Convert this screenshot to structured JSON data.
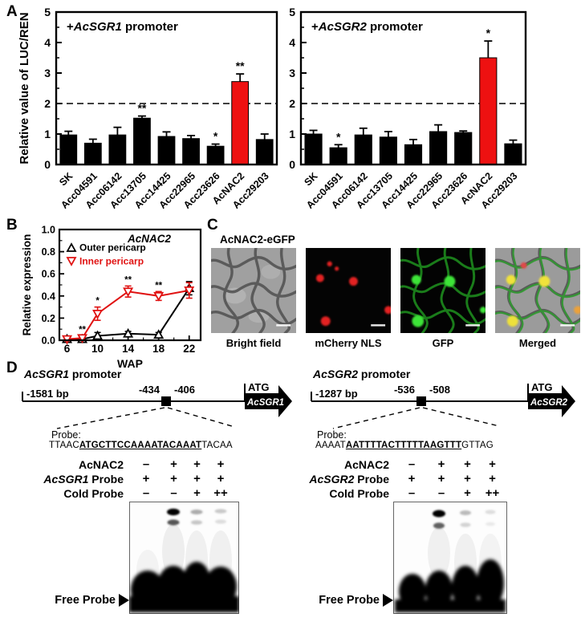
{
  "figure": {
    "background": "#ffffff"
  },
  "colors": {
    "highlight_red": "#ee1111",
    "series_red": "#e01212",
    "bar_black": "#000000"
  },
  "panels": {
    "A": {
      "label": "A"
    },
    "B": {
      "label": "B"
    },
    "C": {
      "label": "C",
      "title": "AcNAC2-eGFP",
      "captions": [
        "Bright field",
        "mCherry NLS",
        "GFP",
        "Merged"
      ]
    },
    "D": {
      "label": "D",
      "sections": [
        {
          "gene": "AcSGR1",
          "title_suffix": " promoter",
          "length_label": "-1581 bp",
          "site_left": "-434",
          "site_right": "-406",
          "atg_label": "ATG",
          "probe_label": "Probe:",
          "probe_prefix": "TTAAC",
          "probe_core": "ATGCTTCCAAAATACAAAT",
          "probe_suffix": "TACAA",
          "emsa_rows": [
            {
              "label_gene": "",
              "label": "AcNAC2",
              "symbols": [
                "–",
                "+",
                "+",
                "+"
              ]
            },
            {
              "label_gene": "AcSGR1",
              "label": " Probe",
              "symbols": [
                "+",
                "+",
                "+",
                "+"
              ]
            },
            {
              "label_gene": "",
              "label": "Cold Probe",
              "symbols": [
                "–",
                "–",
                "+",
                "++"
              ]
            }
          ],
          "free_probe_label": "Free Probe"
        },
        {
          "gene": "AcSGR2",
          "title_suffix": " promoter",
          "length_label": "-1287 bp",
          "site_left": "-536",
          "site_right": "-508",
          "atg_label": "ATG",
          "probe_label": "Probe:",
          "probe_prefix": "AAAAT",
          "probe_core": "AATTTTACTTTTTAAGTTT",
          "probe_suffix": "GTTAG",
          "emsa_rows": [
            {
              "label_gene": "",
              "label": "AcNAC2",
              "symbols": [
                "–",
                "+",
                "+",
                "+"
              ]
            },
            {
              "label_gene": "AcSGR2",
              "label": " Probe",
              "symbols": [
                "+",
                "+",
                "+",
                "+"
              ]
            },
            {
              "label_gene": "",
              "label": "Cold Probe",
              "symbols": [
                "–",
                "–",
                "+",
                "++"
              ]
            }
          ],
          "free_probe_label": "Free Probe"
        }
      ]
    }
  },
  "chart_data": [
    {
      "id": "luc_ren_acsgr1",
      "panel": "A",
      "type": "bar",
      "title": {
        "prefix": "+",
        "gene": "AcSGR1",
        "suffix": " promoter"
      },
      "ylabel": "Relative value of LUC/REN",
      "ylim": [
        0,
        5
      ],
      "yticks": [
        0,
        1,
        2,
        3,
        4,
        5
      ],
      "ref_line": 2,
      "categories": [
        "SK",
        "Acc04591",
        "Acc06142",
        "Acc13705",
        "Acc14425",
        "Acc22965",
        "Acc23626",
        "AcNAC2",
        "Acc29203"
      ],
      "values": [
        0.97,
        0.7,
        0.97,
        1.52,
        0.92,
        0.85,
        0.6,
        2.72,
        0.82
      ],
      "errors": [
        0.12,
        0.13,
        0.25,
        0.07,
        0.15,
        0.1,
        0.07,
        0.25,
        0.18
      ],
      "sig": [
        "",
        "",
        "",
        "**",
        "",
        "",
        "*",
        "**",
        ""
      ],
      "highlight_index": 7
    },
    {
      "id": "luc_ren_acsgr2",
      "panel": "A",
      "type": "bar",
      "title": {
        "prefix": "+",
        "gene": "AcSGR2",
        "suffix": " promoter"
      },
      "ylabel": "",
      "ylim": [
        0,
        5
      ],
      "yticks": [
        0,
        1,
        2,
        3,
        4,
        5
      ],
      "ref_line": 2,
      "categories": [
        "SK",
        "Acc04591",
        "Acc06142",
        "Acc13705",
        "Acc14425",
        "Acc22965",
        "Acc23626",
        "AcNAC2",
        "Acc29203"
      ],
      "values": [
        1.0,
        0.55,
        0.97,
        0.9,
        0.65,
        1.08,
        1.05,
        3.5,
        0.68
      ],
      "errors": [
        0.12,
        0.1,
        0.22,
        0.18,
        0.17,
        0.22,
        0.05,
        0.55,
        0.12
      ],
      "sig": [
        "",
        "*",
        "",
        "",
        "",
        "",
        "",
        "*",
        ""
      ],
      "highlight_index": 7
    },
    {
      "id": "acnac2_expression",
      "panel": "B",
      "type": "line",
      "title": "AcNAC2",
      "xlabel": "WAP",
      "ylabel": "Relative expression",
      "xlim": [
        5,
        23.5
      ],
      "ylim": [
        0,
        1.0
      ],
      "xticks": [
        6,
        10,
        14,
        18,
        22
      ],
      "x_minor": [
        8,
        12,
        16,
        20
      ],
      "yticks": [
        0.0,
        0.2,
        0.4,
        0.6,
        0.8,
        1.0
      ],
      "x": [
        6,
        8,
        10,
        14,
        18,
        22
      ],
      "legend_position": "top-left",
      "series": [
        {
          "name": "Outer pericarp",
          "color": "#000000",
          "marker": "triangle-up",
          "values": [
            0.01,
            0.01,
            0.04,
            0.06,
            0.05,
            0.47
          ],
          "errors": [
            0.01,
            0.01,
            0.03,
            0.02,
            0.02,
            0.06
          ],
          "sig": [
            "",
            "",
            "",
            "",
            "",
            ""
          ]
        },
        {
          "name": "Inner pericarp",
          "color": "#e01212",
          "marker": "triangle-down",
          "values": [
            0.01,
            0.02,
            0.24,
            0.44,
            0.4,
            0.45
          ],
          "errors": [
            0.015,
            0.02,
            0.06,
            0.05,
            0.04,
            0.07
          ],
          "sig": [
            "",
            "**",
            "*",
            "**",
            "**",
            ""
          ]
        }
      ]
    }
  ]
}
